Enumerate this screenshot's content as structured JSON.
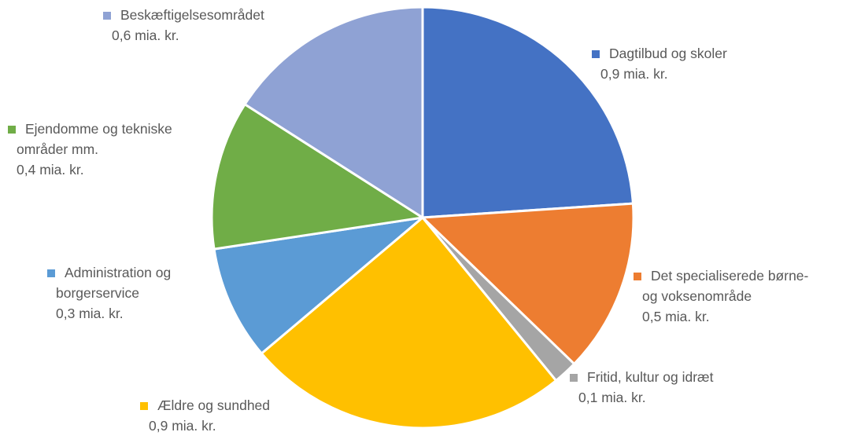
{
  "chart_data": {
    "type": "pie",
    "slices": [
      {
        "label_lines": [
          "Dagtilbud og skoler"
        ],
        "value_label": "0,9 mia. kr.",
        "value": 0.9,
        "color": "#4472C4"
      },
      {
        "label_lines": [
          "Det specialiserede børne-",
          "og voksenområde"
        ],
        "value_label": "0,5 mia. kr.",
        "value": 0.5,
        "color": "#ED7D31"
      },
      {
        "label_lines": [
          "Fritid, kultur og idræt"
        ],
        "value_label": "0,1 mia. kr.",
        "value": 0.07,
        "color": "#A5A5A5"
      },
      {
        "label_lines": [
          "Ældre og sundhed"
        ],
        "value_label": "0,9 mia. kr.",
        "value": 0.93,
        "color": "#FFC000"
      },
      {
        "label_lines": [
          "Administration og",
          "borgerservice"
        ],
        "value_label": "0,3 mia. kr.",
        "value": 0.33,
        "color": "#5B9BD5"
      },
      {
        "label_lines": [
          "Ejendomme og tekniske",
          "områder mm."
        ],
        "value_label": "0,4 mia. kr.",
        "value": 0.43,
        "color": "#70AD47"
      },
      {
        "label_lines": [
          "Beskæftigelsesområdet"
        ],
        "value_label": "0,6 mia. kr.",
        "value": 0.6,
        "color": "#8FA2D4"
      }
    ],
    "legend": "labels-outside"
  }
}
